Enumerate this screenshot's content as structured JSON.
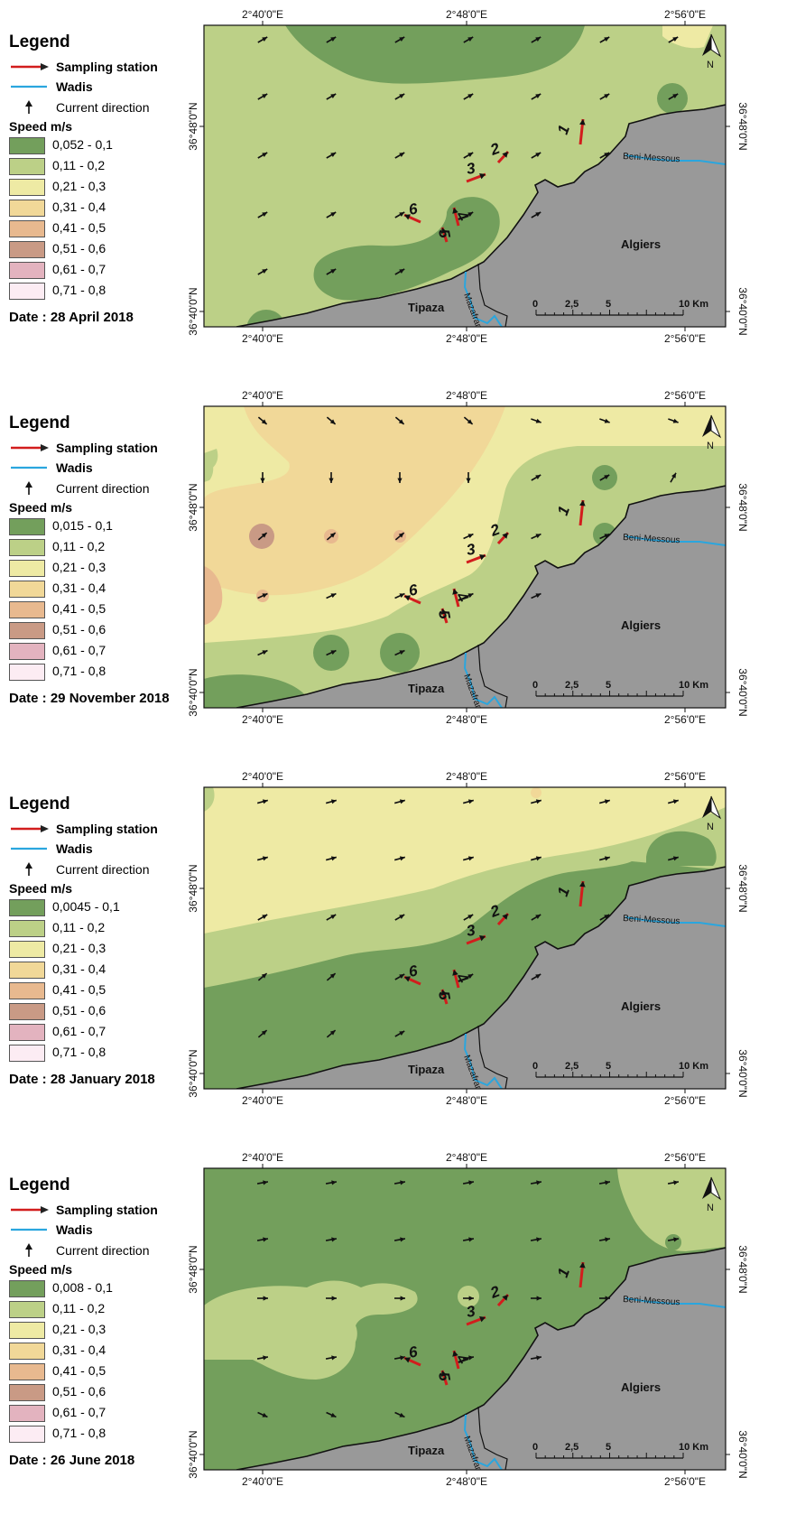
{
  "legend": {
    "title": "Legend",
    "sampling_station": "Sampling station",
    "wadis": "Wadis",
    "current_direction": "Current direction",
    "speed_title": "Speed m/s",
    "classes_rest": [
      "0,11 - 0,2",
      "0,21 - 0,3",
      "0,31 - 0,4",
      "0,41 - 0,5",
      "0,51 - 0,6",
      "0,61 - 0,7",
      "0,71 - 0,8"
    ],
    "colors": [
      "#739f5c",
      "#bcd087",
      "#eeeaa4",
      "#f1d898",
      "#e8b98f",
      "#c99a85",
      "#e3b3bf",
      "#fcecf3"
    ]
  },
  "axes": {
    "top_ticks": [
      "2°40'0\"E",
      "2°48'0\"E",
      "2°56'0\"E"
    ],
    "bottom_ticks": [
      "2°40'0\"E",
      "2°48'0\"E",
      "2°56'0\"E"
    ],
    "left_ticks": [
      "36°48'0\"N",
      "36°40'0\"N"
    ],
    "right_ticks": [
      "36°48'0\"N",
      "36°40'0\"N"
    ]
  },
  "map": {
    "places": {
      "algiers": "Algiers",
      "tipaza": "Tipaza",
      "beni_messous": "Beni-Messous",
      "mazafran": "Mazafran"
    },
    "north": "N",
    "scale": {
      "labels": [
        "0",
        "2,5",
        "5",
        "10 Km"
      ]
    },
    "stations": [
      "1",
      "2",
      "3",
      "4",
      "5",
      "6"
    ]
  },
  "panels": [
    {
      "date": "Date : 28 April 2018",
      "first_class": "0,052 - 0,1"
    },
    {
      "date": "Date : 29 November 2018",
      "first_class": "0,015 - 0,1"
    },
    {
      "date": "Date : 28 January 2018",
      "first_class": "0,0045 - 0,1"
    },
    {
      "date": "Date : 26 June 2018",
      "first_class": "0,008 - 0,1"
    }
  ]
}
